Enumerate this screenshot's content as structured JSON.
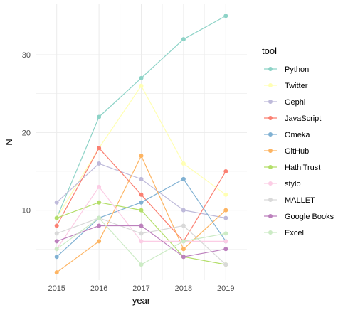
{
  "chart_data": {
    "type": "line",
    "xlabel": "year",
    "ylabel": "N",
    "x": [
      2015,
      2016,
      2017,
      2018,
      2019
    ],
    "xticks": [
      "2015",
      "2016",
      "2017",
      "2018",
      "2019"
    ],
    "yticks": [
      10,
      20,
      30
    ],
    "ylim": [
      1,
      36.5
    ],
    "grid": true,
    "legend_title": "tool",
    "legend_position": "right",
    "series": [
      {
        "name": "Python",
        "color": "#8DD3C7",
        "values": [
          9,
          22,
          27,
          32,
          35
        ]
      },
      {
        "name": "Twitter",
        "color": "#FFFFB3",
        "values": [
          9,
          18,
          26,
          16,
          12
        ]
      },
      {
        "name": "Gephi",
        "color": "#BEBADA",
        "values": [
          11,
          16,
          14,
          10,
          9
        ]
      },
      {
        "name": "JavaScript",
        "color": "#FB8072",
        "values": [
          8,
          18,
          12,
          6,
          15
        ]
      },
      {
        "name": "Omeka",
        "color": "#80B1D3",
        "values": [
          4,
          9,
          11,
          14,
          6
        ]
      },
      {
        "name": "GitHub",
        "color": "#FDB462",
        "values": [
          2,
          6,
          17,
          5,
          10
        ]
      },
      {
        "name": "HathiTrust",
        "color": "#B3DE69",
        "values": [
          9,
          11,
          10,
          4,
          3
        ]
      },
      {
        "name": "stylo",
        "color": "#FCCDE5",
        "values": [
          5,
          13,
          6,
          6,
          6
        ]
      },
      {
        "name": "MALLET",
        "color": "#D9D9D9",
        "values": [
          7,
          9,
          7,
          8,
          3
        ]
      },
      {
        "name": "Google Books",
        "color": "#BC80BD",
        "values": [
          6,
          8,
          8,
          4,
          5
        ]
      },
      {
        "name": "Excel",
        "color": "#CCEBC5",
        "values": [
          5,
          9,
          3,
          6,
          7
        ]
      }
    ]
  }
}
